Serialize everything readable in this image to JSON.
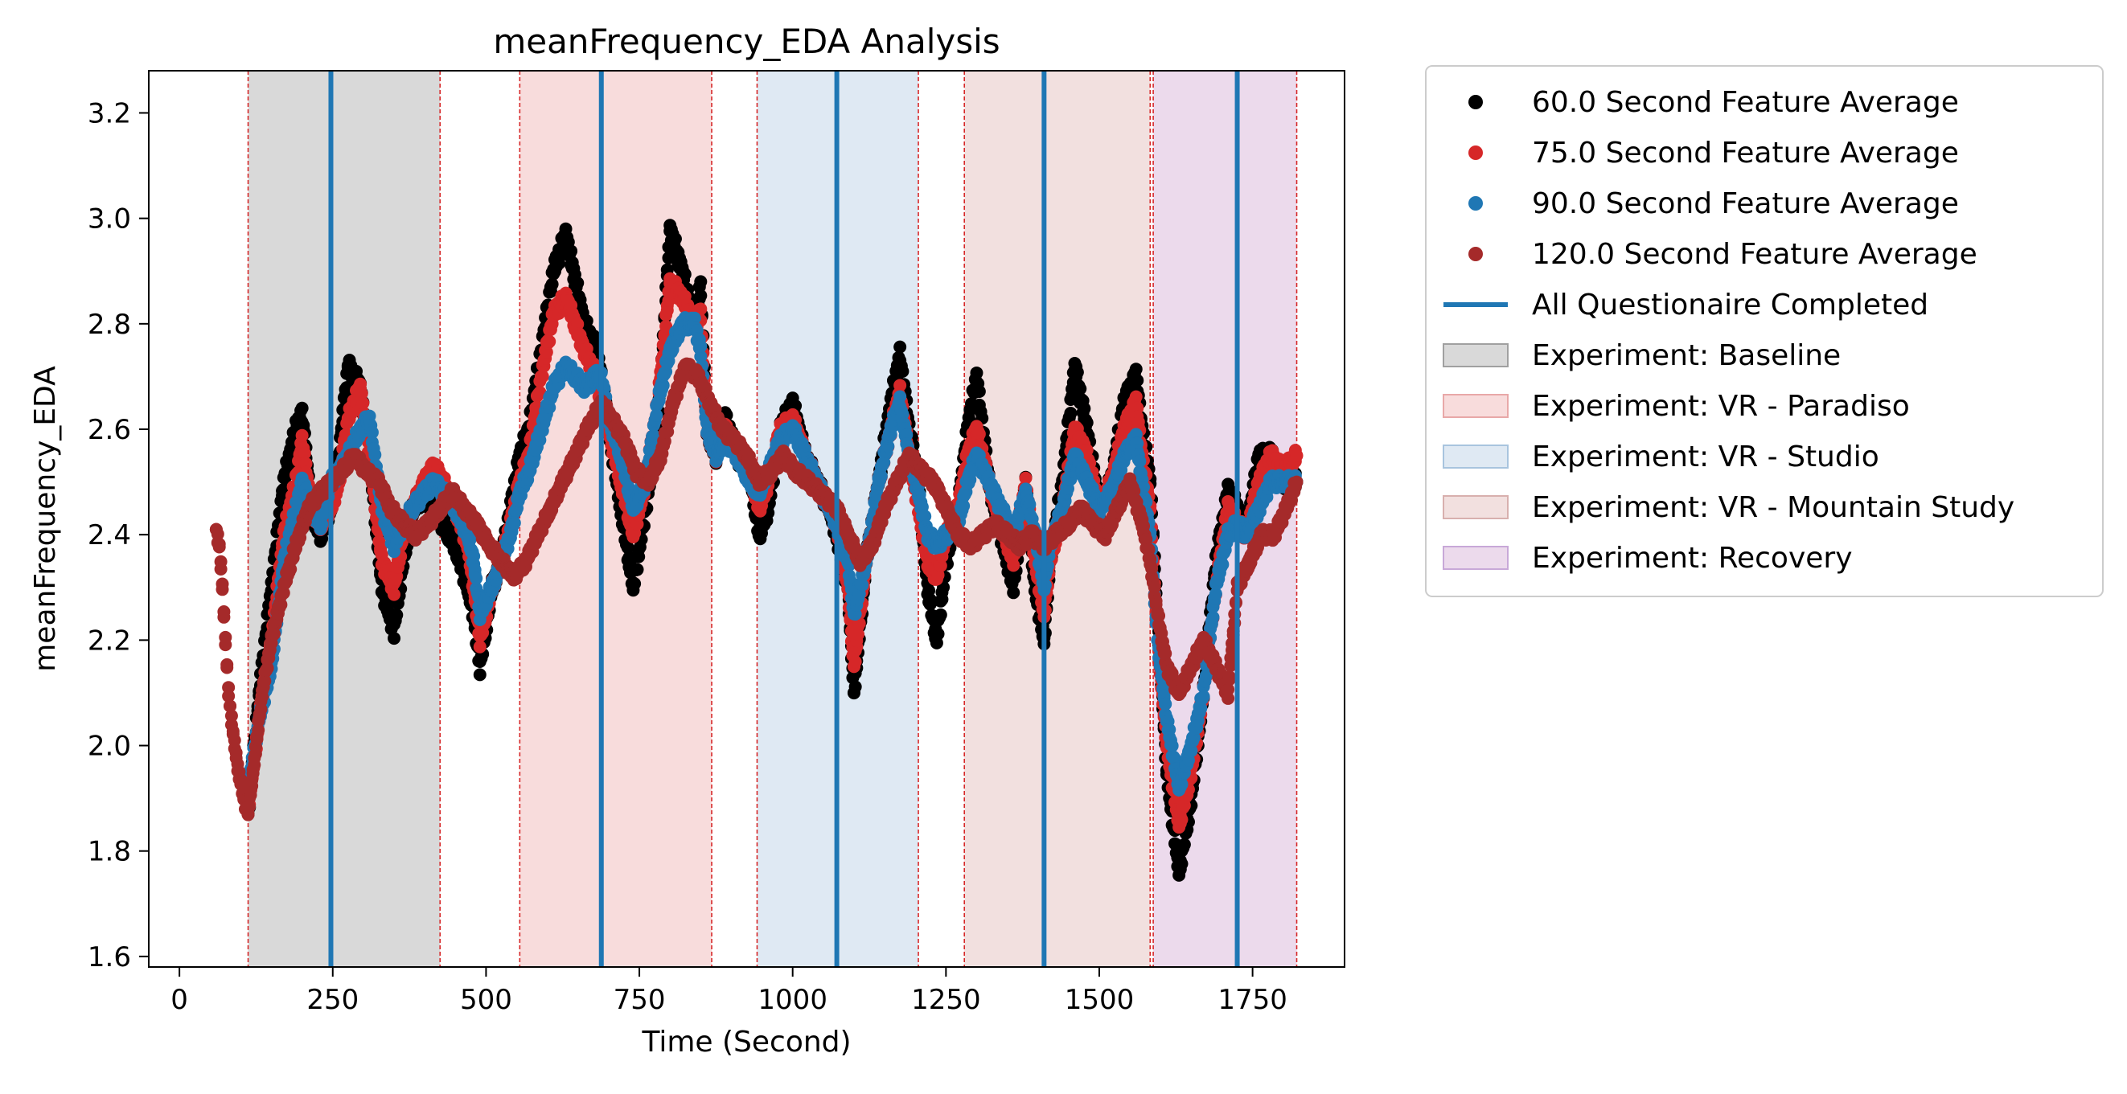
{
  "chart_data": {
    "type": "scatter",
    "title": "meanFrequency_EDA Analysis",
    "xlabel": "Time (Second)",
    "ylabel": "meanFrequency_EDA",
    "xlim": [
      -50,
      1900
    ],
    "ylim": [
      1.58,
      3.28
    ],
    "xticks": [
      0,
      250,
      500,
      750,
      1000,
      1250,
      1500,
      1750
    ],
    "yticks": [
      1.6,
      1.8,
      2.0,
      2.2,
      2.4,
      2.6,
      2.8,
      3.0,
      3.2
    ],
    "xtick_labels": [
      "0",
      "250",
      "500",
      "750",
      "1000",
      "1250",
      "1500",
      "1750"
    ],
    "ytick_labels": [
      "1.6",
      "1.8",
      "2.0",
      "2.2",
      "2.4",
      "2.6",
      "2.8",
      "3.0",
      "3.2"
    ],
    "grid": false,
    "legend_position": "outside-right",
    "phases": [
      {
        "name": "Experiment: Baseline",
        "start": 112,
        "end": 425,
        "color": "#d9d9d9"
      },
      {
        "name": "Experiment: VR - Paradiso",
        "start": 555,
        "end": 868,
        "color": "#f8dcdc"
      },
      {
        "name": "Experiment: VR - Studio",
        "start": 942,
        "end": 1205,
        "color": "#dfe9f3"
      },
      {
        "name": "Experiment: VR - Mountain Study",
        "start": 1280,
        "end": 1583,
        "color": "#f2e0df"
      },
      {
        "name": "Experiment: Recovery",
        "start": 1588,
        "end": 1822,
        "color": "#ecdaec"
      }
    ],
    "questionnaire_completed": [
      247,
      688,
      1072,
      1410,
      1725
    ],
    "series": [
      {
        "name": "60.0 Second Feature Average",
        "color": "#000000",
        "x": [
          112,
          130,
          150,
          170,
          190,
          200,
          215,
          230,
          247,
          260,
          275,
          295,
          310,
          330,
          350,
          365,
          380,
          400,
          415,
          430,
          450,
          470,
          480,
          490,
          510,
          525,
          540,
          555,
          570,
          590,
          610,
          630,
          660,
          680,
          688,
          700,
          720,
          740,
          760,
          780,
          800,
          820,
          840,
          850,
          860,
          875,
          890,
          910,
          930,
          945,
          960,
          980,
          1000,
          1020,
          1040,
          1060,
          1072,
          1090,
          1100,
          1120,
          1140,
          1160,
          1175,
          1190,
          1205,
          1220,
          1235,
          1250,
          1270,
          1285,
          1300,
          1320,
          1340,
          1360,
          1380,
          1395,
          1410,
          1420,
          1440,
          1460,
          1480,
          1500,
          1520,
          1540,
          1560,
          1570,
          1583,
          1595,
          1610,
          1630,
          1650,
          1670,
          1690,
          1710,
          1725,
          1740,
          1760,
          1780,
          1800,
          1822
        ],
        "y": [
          1.87,
          2.1,
          2.3,
          2.5,
          2.6,
          2.63,
          2.45,
          2.4,
          2.45,
          2.55,
          2.72,
          2.68,
          2.55,
          2.3,
          2.22,
          2.35,
          2.45,
          2.48,
          2.45,
          2.42,
          2.38,
          2.3,
          2.25,
          2.15,
          2.3,
          2.35,
          2.45,
          2.55,
          2.6,
          2.75,
          2.9,
          2.97,
          2.8,
          2.75,
          2.7,
          2.6,
          2.45,
          2.3,
          2.45,
          2.6,
          2.98,
          2.9,
          2.8,
          2.87,
          2.6,
          2.55,
          2.62,
          2.55,
          2.52,
          2.4,
          2.45,
          2.6,
          2.65,
          2.55,
          2.5,
          2.45,
          2.4,
          2.3,
          2.1,
          2.35,
          2.5,
          2.65,
          2.74,
          2.6,
          2.5,
          2.3,
          2.2,
          2.35,
          2.45,
          2.6,
          2.7,
          2.5,
          2.4,
          2.3,
          2.5,
          2.3,
          2.2,
          2.35,
          2.5,
          2.72,
          2.6,
          2.45,
          2.5,
          2.65,
          2.7,
          2.6,
          2.5,
          2.25,
          1.95,
          1.76,
          1.9,
          2.1,
          2.35,
          2.48,
          2.45,
          2.4,
          2.55,
          2.55,
          2.5,
          2.5
        ]
      },
      {
        "name": "75.0 Second Feature Average",
        "color": "#d62728",
        "x": [
          112,
          130,
          150,
          170,
          190,
          200,
          215,
          230,
          247,
          260,
          275,
          295,
          310,
          330,
          350,
          365,
          380,
          400,
          415,
          430,
          450,
          470,
          480,
          490,
          510,
          525,
          540,
          555,
          570,
          590,
          610,
          630,
          660,
          680,
          688,
          700,
          720,
          740,
          760,
          780,
          800,
          820,
          840,
          850,
          860,
          875,
          890,
          910,
          930,
          945,
          960,
          980,
          1000,
          1020,
          1040,
          1060,
          1072,
          1090,
          1100,
          1120,
          1140,
          1160,
          1175,
          1190,
          1205,
          1220,
          1235,
          1250,
          1270,
          1285,
          1300,
          1320,
          1340,
          1360,
          1380,
          1395,
          1410,
          1420,
          1440,
          1460,
          1480,
          1500,
          1520,
          1540,
          1560,
          1570,
          1583,
          1595,
          1610,
          1630,
          1650,
          1670,
          1690,
          1710,
          1725,
          1740,
          1760,
          1780,
          1800,
          1822
        ],
        "y": [
          1.88,
          2.05,
          2.2,
          2.4,
          2.5,
          2.58,
          2.45,
          2.42,
          2.45,
          2.5,
          2.62,
          2.68,
          2.55,
          2.35,
          2.3,
          2.4,
          2.45,
          2.5,
          2.53,
          2.5,
          2.45,
          2.38,
          2.3,
          2.2,
          2.3,
          2.35,
          2.42,
          2.5,
          2.55,
          2.7,
          2.82,
          2.85,
          2.75,
          2.7,
          2.65,
          2.6,
          2.5,
          2.4,
          2.5,
          2.65,
          2.88,
          2.85,
          2.8,
          2.82,
          2.6,
          2.55,
          2.6,
          2.55,
          2.52,
          2.45,
          2.5,
          2.6,
          2.62,
          2.55,
          2.5,
          2.45,
          2.42,
          2.3,
          2.15,
          2.35,
          2.5,
          2.6,
          2.67,
          2.55,
          2.45,
          2.35,
          2.32,
          2.4,
          2.45,
          2.55,
          2.6,
          2.5,
          2.42,
          2.35,
          2.5,
          2.35,
          2.25,
          2.35,
          2.45,
          2.6,
          2.55,
          2.45,
          2.5,
          2.6,
          2.65,
          2.55,
          2.45,
          2.2,
          2.0,
          1.85,
          1.95,
          2.1,
          2.3,
          2.45,
          2.42,
          2.4,
          2.5,
          2.55,
          2.52,
          2.55
        ]
      },
      {
        "name": "90.0 Second Feature Average",
        "color": "#1f77b4",
        "x": [
          112,
          130,
          150,
          170,
          190,
          200,
          215,
          230,
          247,
          260,
          275,
          295,
          310,
          330,
          350,
          365,
          380,
          400,
          415,
          430,
          450,
          470,
          480,
          490,
          510,
          525,
          540,
          555,
          570,
          590,
          610,
          630,
          660,
          680,
          688,
          700,
          720,
          740,
          760,
          780,
          800,
          820,
          840,
          850,
          860,
          875,
          890,
          910,
          930,
          945,
          960,
          980,
          1000,
          1020,
          1040,
          1060,
          1072,
          1090,
          1100,
          1120,
          1140,
          1160,
          1175,
          1190,
          1205,
          1220,
          1235,
          1250,
          1270,
          1285,
          1300,
          1320,
          1340,
          1360,
          1380,
          1395,
          1410,
          1420,
          1440,
          1460,
          1480,
          1500,
          1520,
          1540,
          1560,
          1570,
          1583,
          1595,
          1610,
          1630,
          1650,
          1670,
          1690,
          1710,
          1725,
          1740,
          1760,
          1780,
          1800,
          1822
        ],
        "y": [
          1.92,
          2.05,
          2.15,
          2.35,
          2.45,
          2.5,
          2.45,
          2.42,
          2.5,
          2.52,
          2.55,
          2.6,
          2.62,
          2.45,
          2.38,
          2.42,
          2.45,
          2.48,
          2.5,
          2.48,
          2.45,
          2.4,
          2.35,
          2.25,
          2.3,
          2.35,
          2.4,
          2.48,
          2.52,
          2.6,
          2.68,
          2.72,
          2.68,
          2.7,
          2.7,
          2.62,
          2.55,
          2.45,
          2.5,
          2.65,
          2.75,
          2.8,
          2.8,
          2.75,
          2.6,
          2.55,
          2.58,
          2.55,
          2.5,
          2.48,
          2.52,
          2.58,
          2.6,
          2.55,
          2.5,
          2.45,
          2.42,
          2.35,
          2.25,
          2.35,
          2.5,
          2.6,
          2.65,
          2.55,
          2.48,
          2.4,
          2.38,
          2.4,
          2.42,
          2.5,
          2.55,
          2.5,
          2.45,
          2.4,
          2.48,
          2.4,
          2.3,
          2.38,
          2.45,
          2.55,
          2.5,
          2.45,
          2.48,
          2.55,
          2.58,
          2.5,
          2.4,
          2.2,
          2.05,
          1.92,
          2.0,
          2.1,
          2.3,
          2.4,
          2.42,
          2.4,
          2.45,
          2.5,
          2.5,
          2.5
        ]
      },
      {
        "name": "120.0 Second Feature Average",
        "color": "#a52a2a",
        "x": [
          60,
          65,
          70,
          75,
          80,
          85,
          90,
          95,
          100,
          105,
          112,
          120,
          135,
          150,
          170,
          190,
          210,
          230,
          247,
          265,
          285,
          305,
          325,
          345,
          365,
          385,
          405,
          425,
          445,
          465,
          485,
          505,
          525,
          545,
          565,
          585,
          605,
          625,
          645,
          665,
          688,
          705,
          725,
          745,
          765,
          785,
          805,
          825,
          845,
          865,
          885,
          905,
          925,
          945,
          965,
          985,
          1005,
          1025,
          1045,
          1072,
          1090,
          1110,
          1130,
          1150,
          1170,
          1190,
          1210,
          1230,
          1250,
          1270,
          1290,
          1310,
          1330,
          1350,
          1370,
          1390,
          1410,
          1430,
          1450,
          1470,
          1490,
          1510,
          1530,
          1550,
          1570,
          1583,
          1595,
          1610,
          1630,
          1650,
          1670,
          1690,
          1710,
          1725,
          1745,
          1765,
          1785,
          1805,
          1822
        ],
        "y": [
          2.41,
          2.38,
          2.3,
          2.2,
          2.1,
          2.05,
          2.0,
          1.96,
          1.93,
          1.9,
          1.87,
          1.95,
          2.1,
          2.2,
          2.3,
          2.38,
          2.45,
          2.48,
          2.5,
          2.52,
          2.55,
          2.52,
          2.5,
          2.45,
          2.42,
          2.4,
          2.42,
          2.45,
          2.48,
          2.45,
          2.42,
          2.38,
          2.35,
          2.32,
          2.35,
          2.4,
          2.45,
          2.5,
          2.55,
          2.6,
          2.65,
          2.62,
          2.58,
          2.52,
          2.5,
          2.55,
          2.65,
          2.72,
          2.7,
          2.65,
          2.6,
          2.58,
          2.55,
          2.5,
          2.52,
          2.55,
          2.52,
          2.5,
          2.48,
          2.45,
          2.4,
          2.35,
          2.38,
          2.45,
          2.5,
          2.55,
          2.52,
          2.5,
          2.45,
          2.4,
          2.38,
          2.4,
          2.42,
          2.4,
          2.38,
          2.4,
          2.38,
          2.4,
          2.42,
          2.45,
          2.42,
          2.4,
          2.45,
          2.5,
          2.42,
          2.35,
          2.25,
          2.15,
          2.1,
          2.15,
          2.2,
          2.15,
          2.1,
          2.3,
          2.35,
          2.4,
          2.4,
          2.45,
          2.5
        ]
      }
    ]
  },
  "legend": {
    "items": [
      {
        "label": "60.0 Second Feature Average",
        "kind": "marker",
        "color": "#000000"
      },
      {
        "label": "75.0 Second Feature Average",
        "kind": "marker",
        "color": "#d62728"
      },
      {
        "label": "90.0 Second Feature Average",
        "kind": "marker",
        "color": "#1f77b4"
      },
      {
        "label": "120.0 Second Feature Average",
        "kind": "marker",
        "color": "#a52a2a"
      },
      {
        "label": "All Questionaire Completed",
        "kind": "line",
        "color": "#1f77b4"
      },
      {
        "label": "Experiment: Baseline",
        "kind": "patch",
        "color": "#d9d9d9",
        "edge": "#a0a0a0"
      },
      {
        "label": "Experiment: VR - Paradiso",
        "kind": "patch",
        "color": "#f8dcdc",
        "edge": "#e8a8a8"
      },
      {
        "label": "Experiment: VR - Studio",
        "kind": "patch",
        "color": "#dfe9f3",
        "edge": "#a8c4de"
      },
      {
        "label": "Experiment: VR - Mountain Study",
        "kind": "patch",
        "color": "#f2e0df",
        "edge": "#d8b0ae"
      },
      {
        "label": "Experiment: Recovery",
        "kind": "patch",
        "color": "#ecdaec",
        "edge": "#c8a8d8"
      }
    ]
  }
}
